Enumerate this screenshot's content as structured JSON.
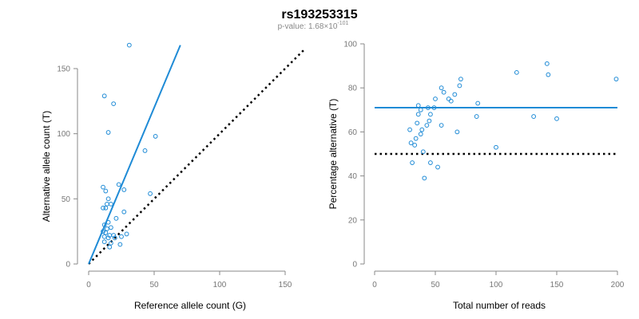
{
  "figure": {
    "title": "rs193253315",
    "subtitle_prefix": "p-value: 1.68×10",
    "subtitle_exponent": "-101"
  },
  "colors": {
    "points": "#1f8bd6",
    "fit_line": "#1f8bd6",
    "reference_line": "#000000"
  },
  "chart_data": [
    {
      "type": "scatter",
      "xlabel": "Reference allele count (G)",
      "ylabel": "Alternative allele count (T)",
      "xlim": [
        0,
        150
      ],
      "ylim": [
        0,
        150
      ],
      "xticks": [
        0,
        50,
        100,
        150
      ],
      "yticks": [
        0,
        50,
        100,
        150
      ],
      "grid": false,
      "points": [
        [
          31,
          168
        ],
        [
          12,
          129
        ],
        [
          19,
          123
        ],
        [
          15,
          101
        ],
        [
          51,
          98
        ],
        [
          43,
          87
        ],
        [
          23,
          61
        ],
        [
          11,
          59
        ],
        [
          27,
          57
        ],
        [
          13,
          56
        ],
        [
          15,
          50
        ],
        [
          14,
          46
        ],
        [
          17,
          46
        ],
        [
          11,
          43
        ],
        [
          13,
          43
        ],
        [
          47,
          54
        ],
        [
          27,
          40
        ],
        [
          21,
          35
        ],
        [
          15,
          32
        ],
        [
          12,
          30
        ],
        [
          17,
          28
        ],
        [
          14,
          27
        ],
        [
          11,
          25
        ],
        [
          13,
          24
        ],
        [
          19,
          22
        ],
        [
          16,
          22
        ],
        [
          12,
          21
        ],
        [
          15,
          20
        ],
        [
          25,
          21
        ],
        [
          29,
          23
        ],
        [
          20,
          20
        ],
        [
          12,
          17
        ],
        [
          17,
          16
        ],
        [
          24,
          15
        ],
        [
          16,
          13
        ]
      ],
      "fit_line": {
        "x": [
          0,
          70
        ],
        "y": [
          0,
          168
        ]
      },
      "reference_line": {
        "x": [
          0,
          165
        ],
        "y": [
          0,
          165
        ]
      }
    },
    {
      "type": "scatter",
      "xlabel": "Total number of reads",
      "ylabel": "Percentage alternative (T)",
      "xlim": [
        0,
        200
      ],
      "ylim": [
        0,
        100
      ],
      "xticks": [
        0,
        50,
        100,
        150,
        200
      ],
      "yticks": [
        0,
        20,
        40,
        60,
        80,
        100
      ],
      "grid": false,
      "points": [
        [
          199,
          84
        ],
        [
          142,
          91
        ],
        [
          143,
          86
        ],
        [
          117,
          87
        ],
        [
          71,
          84
        ],
        [
          70,
          81
        ],
        [
          55,
          80
        ],
        [
          57,
          78
        ],
        [
          66,
          77
        ],
        [
          50,
          75
        ],
        [
          63,
          74
        ],
        [
          61,
          75
        ],
        [
          85,
          73
        ],
        [
          44,
          71
        ],
        [
          36,
          72
        ],
        [
          49,
          71
        ],
        [
          38,
          70
        ],
        [
          46,
          68
        ],
        [
          36,
          68
        ],
        [
          84,
          67
        ],
        [
          131,
          67
        ],
        [
          150,
          66
        ],
        [
          45,
          65
        ],
        [
          35,
          64
        ],
        [
          43,
          63
        ],
        [
          55,
          63
        ],
        [
          39,
          61
        ],
        [
          29,
          61
        ],
        [
          38,
          59
        ],
        [
          68,
          60
        ],
        [
          34,
          57
        ],
        [
          30,
          55
        ],
        [
          33,
          54
        ],
        [
          100,
          53
        ],
        [
          40,
          51
        ],
        [
          31,
          46
        ],
        [
          46,
          46
        ],
        [
          52,
          44
        ],
        [
          41,
          39
        ]
      ],
      "fit_line": {
        "x": [
          0,
          200
        ],
        "y": [
          71,
          71
        ]
      },
      "reference_line": {
        "x": [
          0,
          200
        ],
        "y": [
          50,
          50
        ]
      }
    }
  ]
}
